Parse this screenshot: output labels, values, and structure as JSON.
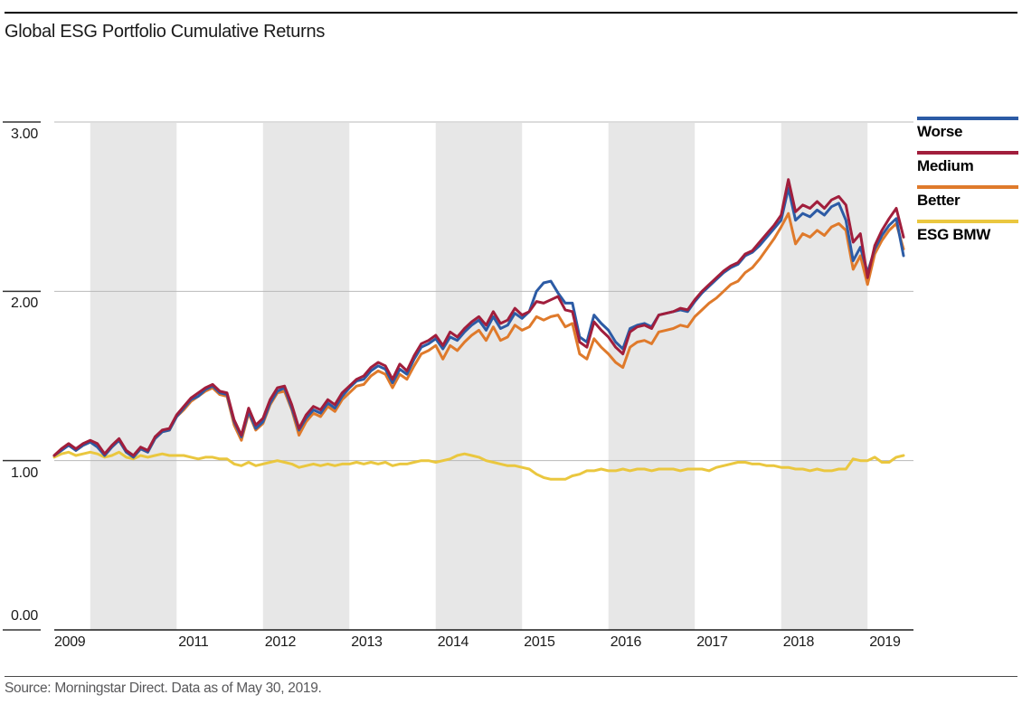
{
  "header": {
    "title": "Global ESG Portfolio Cumulative Returns"
  },
  "footer": {
    "source": "Source: Morningstar Direct. Data as of May 30, 2019."
  },
  "legend": [
    {
      "label": "Worse",
      "color": "#2C5BA5"
    },
    {
      "label": "Medium",
      "color": "#A11E3C"
    },
    {
      "label": "Better",
      "color": "#DF7A2B"
    },
    {
      "label": "ESG BMW",
      "color": "#EAC73F"
    }
  ],
  "colors": {
    "band": "#e7e7e7",
    "grid": "#b9b9b9",
    "axis": "#1a1a1a",
    "tick": "#333333"
  },
  "chart_data": {
    "type": "line",
    "title": "Global ESG Portfolio Cumulative Returns",
    "frequency": "monthly",
    "x_start": "2009-07",
    "x_end": "2019-05",
    "ylim": [
      0,
      3
    ],
    "y_ticks": [
      "3.00",
      "2.00",
      "1.00",
      "0.00"
    ],
    "x_tick_years": [
      2009,
      2011,
      2012,
      2013,
      2014,
      2015,
      2016,
      2017,
      2018,
      2019
    ],
    "shaded_years": [
      2010,
      2012,
      2014,
      2016,
      2018
    ],
    "grid": true,
    "legend_position": "top-right",
    "series": [
      {
        "name": "Worse",
        "color": "#2C5BA5",
        "values": [
          1.03,
          1.06,
          1.09,
          1.06,
          1.09,
          1.11,
          1.08,
          1.03,
          1.08,
          1.12,
          1.05,
          1.02,
          1.07,
          1.05,
          1.13,
          1.17,
          1.18,
          1.26,
          1.31,
          1.36,
          1.38,
          1.42,
          1.44,
          1.4,
          1.39,
          1.23,
          1.14,
          1.29,
          1.19,
          1.23,
          1.34,
          1.41,
          1.43,
          1.31,
          1.18,
          1.25,
          1.3,
          1.28,
          1.34,
          1.31,
          1.38,
          1.43,
          1.47,
          1.48,
          1.53,
          1.56,
          1.54,
          1.46,
          1.54,
          1.51,
          1.6,
          1.67,
          1.69,
          1.72,
          1.66,
          1.73,
          1.71,
          1.76,
          1.8,
          1.83,
          1.77,
          1.85,
          1.78,
          1.8,
          1.87,
          1.84,
          1.88,
          2.0,
          2.05,
          2.06,
          1.99,
          1.93,
          1.93,
          1.73,
          1.7,
          1.86,
          1.81,
          1.77,
          1.7,
          1.66,
          1.78,
          1.8,
          1.81,
          1.79,
          1.86,
          1.87,
          1.88,
          1.89,
          1.88,
          1.94,
          1.99,
          2.03,
          2.07,
          2.11,
          2.14,
          2.16,
          2.21,
          2.23,
          2.27,
          2.32,
          2.37,
          2.42,
          2.61,
          2.42,
          2.46,
          2.44,
          2.48,
          2.45,
          2.5,
          2.52,
          2.42,
          2.18,
          2.26,
          2.11,
          2.25,
          2.33,
          2.39,
          2.43,
          2.21
        ]
      },
      {
        "name": "Medium",
        "color": "#A11E3C",
        "values": [
          1.03,
          1.07,
          1.1,
          1.07,
          1.1,
          1.12,
          1.1,
          1.04,
          1.09,
          1.13,
          1.06,
          1.03,
          1.08,
          1.06,
          1.14,
          1.18,
          1.19,
          1.27,
          1.32,
          1.37,
          1.4,
          1.43,
          1.45,
          1.41,
          1.4,
          1.24,
          1.15,
          1.31,
          1.21,
          1.25,
          1.36,
          1.43,
          1.44,
          1.33,
          1.19,
          1.27,
          1.32,
          1.3,
          1.36,
          1.33,
          1.4,
          1.44,
          1.48,
          1.5,
          1.55,
          1.58,
          1.56,
          1.48,
          1.57,
          1.53,
          1.62,
          1.69,
          1.71,
          1.74,
          1.68,
          1.76,
          1.73,
          1.78,
          1.82,
          1.85,
          1.8,
          1.88,
          1.81,
          1.83,
          1.9,
          1.86,
          1.88,
          1.94,
          1.93,
          1.95,
          1.97,
          1.89,
          1.88,
          1.7,
          1.67,
          1.82,
          1.77,
          1.73,
          1.67,
          1.63,
          1.76,
          1.79,
          1.8,
          1.78,
          1.86,
          1.87,
          1.88,
          1.9,
          1.89,
          1.95,
          2.0,
          2.04,
          2.08,
          2.12,
          2.15,
          2.17,
          2.22,
          2.24,
          2.29,
          2.34,
          2.39,
          2.45,
          2.66,
          2.47,
          2.51,
          2.49,
          2.53,
          2.49,
          2.54,
          2.56,
          2.51,
          2.29,
          2.34,
          2.08,
          2.27,
          2.36,
          2.43,
          2.49,
          2.32
        ]
      },
      {
        "name": "Better",
        "color": "#DF7A2B",
        "values": [
          1.03,
          1.07,
          1.1,
          1.06,
          1.09,
          1.11,
          1.09,
          1.03,
          1.08,
          1.12,
          1.05,
          1.02,
          1.07,
          1.05,
          1.13,
          1.17,
          1.18,
          1.26,
          1.3,
          1.35,
          1.38,
          1.41,
          1.43,
          1.39,
          1.38,
          1.21,
          1.12,
          1.28,
          1.18,
          1.22,
          1.33,
          1.4,
          1.41,
          1.3,
          1.15,
          1.23,
          1.28,
          1.26,
          1.32,
          1.29,
          1.36,
          1.4,
          1.44,
          1.45,
          1.5,
          1.53,
          1.51,
          1.43,
          1.51,
          1.48,
          1.56,
          1.63,
          1.65,
          1.68,
          1.6,
          1.68,
          1.65,
          1.7,
          1.74,
          1.77,
          1.71,
          1.79,
          1.71,
          1.73,
          1.8,
          1.77,
          1.79,
          1.85,
          1.83,
          1.85,
          1.86,
          1.79,
          1.81,
          1.63,
          1.6,
          1.72,
          1.67,
          1.63,
          1.58,
          1.55,
          1.67,
          1.7,
          1.71,
          1.69,
          1.76,
          1.77,
          1.78,
          1.8,
          1.79,
          1.85,
          1.89,
          1.93,
          1.96,
          2.0,
          2.04,
          2.06,
          2.11,
          2.14,
          2.19,
          2.25,
          2.31,
          2.38,
          2.46,
          2.28,
          2.34,
          2.32,
          2.36,
          2.33,
          2.38,
          2.4,
          2.36,
          2.13,
          2.21,
          2.04,
          2.22,
          2.3,
          2.36,
          2.4,
          2.25
        ]
      },
      {
        "name": "ESG BMW",
        "color": "#EAC73F",
        "values": [
          1.02,
          1.04,
          1.05,
          1.03,
          1.04,
          1.05,
          1.04,
          1.02,
          1.03,
          1.05,
          1.02,
          1.01,
          1.03,
          1.02,
          1.03,
          1.04,
          1.03,
          1.03,
          1.03,
          1.02,
          1.01,
          1.02,
          1.02,
          1.01,
          1.01,
          0.98,
          0.97,
          0.99,
          0.97,
          0.98,
          0.99,
          1.0,
          0.99,
          0.98,
          0.96,
          0.97,
          0.98,
          0.97,
          0.98,
          0.97,
          0.98,
          0.98,
          0.99,
          0.98,
          0.99,
          0.98,
          0.99,
          0.97,
          0.98,
          0.98,
          0.99,
          1.0,
          1.0,
          0.99,
          1.0,
          1.01,
          1.03,
          1.04,
          1.03,
          1.02,
          1.0,
          0.99,
          0.98,
          0.97,
          0.97,
          0.96,
          0.95,
          0.92,
          0.9,
          0.89,
          0.89,
          0.89,
          0.91,
          0.92,
          0.94,
          0.94,
          0.95,
          0.94,
          0.94,
          0.95,
          0.94,
          0.95,
          0.95,
          0.94,
          0.95,
          0.95,
          0.95,
          0.94,
          0.95,
          0.95,
          0.95,
          0.94,
          0.96,
          0.97,
          0.98,
          0.99,
          0.99,
          0.98,
          0.98,
          0.97,
          0.97,
          0.96,
          0.96,
          0.95,
          0.95,
          0.94,
          0.95,
          0.94,
          0.94,
          0.95,
          0.95,
          1.01,
          1.0,
          1.0,
          1.02,
          0.99,
          0.99,
          1.02,
          1.03
        ]
      }
    ]
  }
}
